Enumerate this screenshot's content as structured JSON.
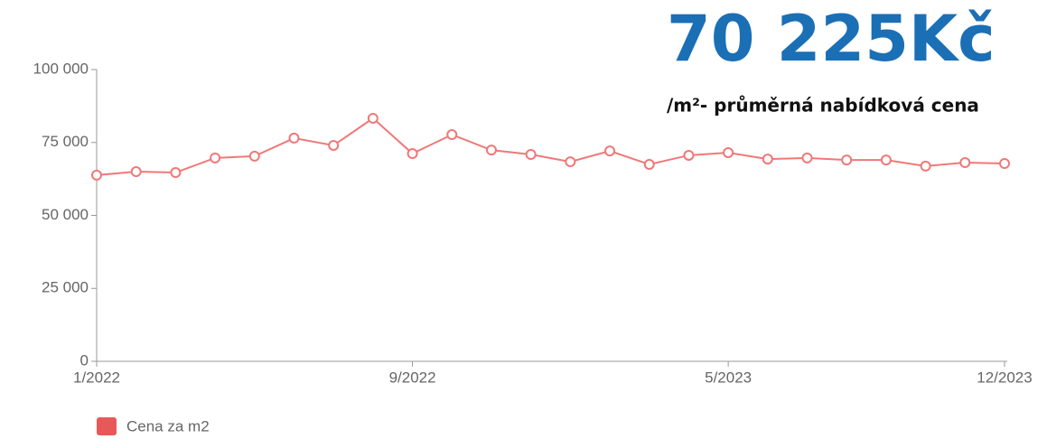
{
  "chart_data": {
    "type": "line",
    "headline": "70 225Kč",
    "subtitle": "/m²- průměrná nabídková cena",
    "categories": [
      "1/2022",
      null,
      null,
      null,
      null,
      null,
      null,
      null,
      "9/2022",
      null,
      null,
      null,
      null,
      null,
      null,
      null,
      "5/2023",
      null,
      null,
      null,
      null,
      null,
      null,
      "12/2023"
    ],
    "series": [
      {
        "name": "Cena za m2",
        "color": "#f07878",
        "values": [
          63800,
          65000,
          64700,
          69700,
          70300,
          76500,
          74000,
          83300,
          71200,
          77700,
          72400,
          70900,
          68400,
          72100,
          67500,
          70600,
          71500,
          69300,
          69700,
          69000,
          69000,
          66900,
          68100,
          67800
        ]
      }
    ],
    "legend_color": "#e85858",
    "ylim": [
      0,
      100000
    ],
    "yticks": [
      0,
      {
        "value": 25000,
        "label": "25 000"
      },
      {
        "value": 50000,
        "label": "50 000"
      },
      {
        "value": 75000,
        "label": "75 000"
      },
      {
        "value": 100000,
        "label": "100 000"
      }
    ]
  }
}
